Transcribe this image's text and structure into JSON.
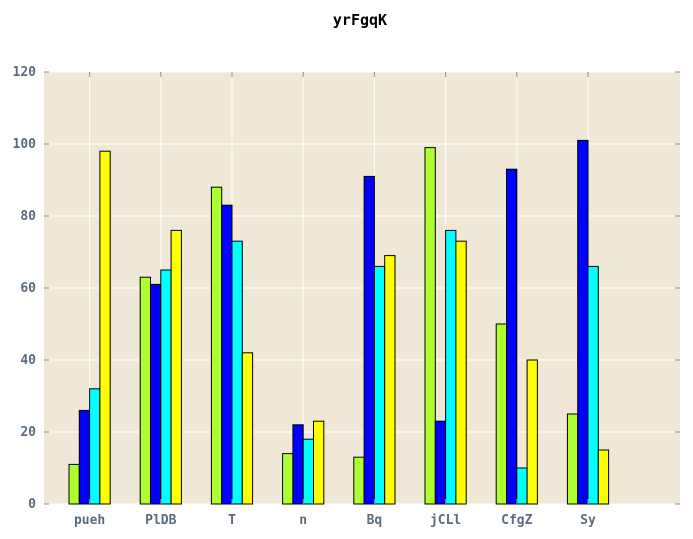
{
  "chart_data": {
    "type": "bar",
    "title": "yrFgqK",
    "xlabel": "",
    "ylabel": "",
    "ylim": [
      0,
      120
    ],
    "yticks": [
      0,
      20,
      40,
      60,
      80,
      100,
      120
    ],
    "grid": true,
    "legend": "none",
    "background": "#efe8d6",
    "categories": [
      "pueh",
      "PlDB",
      "T",
      "n",
      "Bq",
      "jCLl",
      "CfgZ",
      "Sy"
    ],
    "series": [
      {
        "color": "#adff2f",
        "values": [
          11,
          63,
          88,
          14,
          13,
          99,
          50,
          25
        ]
      },
      {
        "color": "#0000ff",
        "values": [
          26,
          61,
          83,
          22,
          91,
          23,
          93,
          101
        ]
      },
      {
        "color": "#00ffff",
        "values": [
          32,
          65,
          73,
          18,
          66,
          76,
          10,
          66
        ]
      },
      {
        "color": "#ffff00",
        "values": [
          98,
          76,
          42,
          23,
          69,
          73,
          40,
          15
        ]
      }
    ]
  }
}
